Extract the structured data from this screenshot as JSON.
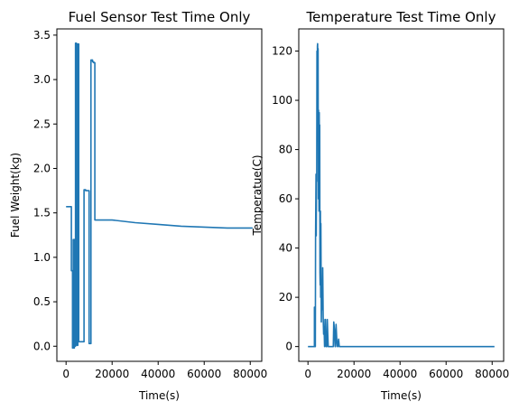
{
  "chart_data": [
    {
      "type": "line",
      "title": "Fuel Sensor Test Time Only",
      "xlabel": "Time(s)",
      "ylabel": "Fuel Weight(kg)",
      "xlim": [
        -4000,
        85000
      ],
      "ylim": [
        -0.17,
        3.57
      ],
      "xticks": [
        0,
        20000,
        40000,
        60000,
        80000
      ],
      "yticks": [
        0.0,
        0.5,
        1.0,
        1.5,
        2.0,
        2.5,
        3.0,
        3.5
      ],
      "grid": false,
      "color": "#1f77b4",
      "series": [
        {
          "x": [
            0,
            2300,
            2300,
            2800,
            2800,
            3100,
            3100,
            3300,
            3300,
            3600,
            3600,
            3900,
            3900,
            4100,
            4100,
            4500,
            4500,
            4700,
            4700,
            5100,
            5100,
            5500,
            5500,
            7800,
            7800,
            8500,
            8500,
            10000,
            10000,
            10800,
            10800,
            11500,
            11500,
            12000,
            12000,
            12500,
            12500,
            15000,
            20000,
            30000,
            40000,
            50000,
            60000,
            70000,
            81000
          ],
          "y": [
            1.57,
            1.57,
            0.85,
            0.85,
            -0.02,
            -0.02,
            1.2,
            1.2,
            -0.02,
            -0.02,
            1.2,
            1.2,
            0.0,
            0.0,
            3.41,
            3.41,
            3.4,
            3.4,
            0.01,
            0.01,
            3.4,
            3.4,
            0.05,
            0.05,
            1.76,
            1.76,
            1.75,
            1.75,
            0.03,
            0.03,
            3.22,
            3.22,
            3.2,
            3.2,
            3.19,
            3.19,
            1.42,
            1.42,
            1.42,
            1.39,
            1.37,
            1.35,
            1.34,
            1.33,
            1.33
          ]
        }
      ]
    },
    {
      "type": "line",
      "title": "Temperature Test Time Only",
      "xlabel": "Time(s)",
      "ylabel": "Temperatue(C)",
      "xlim": [
        -4000,
        85000
      ],
      "ylim": [
        -6,
        129
      ],
      "xticks": [
        0,
        20000,
        40000,
        60000,
        80000
      ],
      "yticks": [
        0,
        20,
        40,
        60,
        80,
        100,
        120
      ],
      "grid": false,
      "color": "#1f77b4",
      "series": [
        {
          "x": [
            0,
            2800,
            2800,
            3000,
            3000,
            3200,
            3300,
            3500,
            3600,
            3700,
            3800,
            3900,
            4000,
            4100,
            4200,
            4300,
            4400,
            4500,
            4600,
            4700,
            4800,
            4900,
            5000,
            5100,
            5200,
            5300,
            5400,
            5500,
            5600,
            5800,
            6000,
            6200,
            6400,
            6600,
            6800,
            7000,
            7200,
            7400,
            7600,
            7800,
            8000,
            8200,
            8400,
            8600,
            8800,
            9000,
            9500,
            10000,
            10500,
            11000,
            11200,
            11500,
            11800,
            12000,
            12200,
            12500,
            12800,
            13000,
            13300,
            13600,
            13800,
            14200,
            14500,
            15000,
            20000,
            40000,
            60000,
            81000
          ],
          "y": [
            0,
            0,
            16,
            16,
            0,
            0,
            44,
            70,
            45,
            70,
            67,
            120,
            100,
            122,
            123,
            95,
            121,
            60,
            96,
            70,
            55,
            95,
            60,
            90,
            30,
            25,
            55,
            20,
            50,
            10,
            23,
            15,
            32,
            12,
            5,
            8,
            0,
            11,
            11,
            0,
            0,
            0,
            11,
            5,
            0,
            0,
            0,
            0,
            0,
            0,
            10,
            7,
            0,
            0,
            9,
            3,
            0,
            0,
            3,
            0,
            0,
            0,
            0,
            0,
            0,
            0,
            0,
            0
          ]
        }
      ]
    }
  ]
}
